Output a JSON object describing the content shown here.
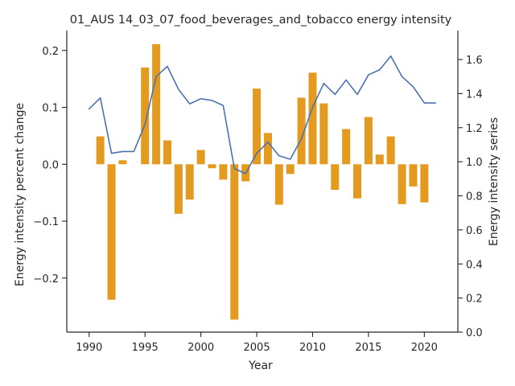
{
  "chart_data": {
    "type": "bar+line",
    "title": "01_AUS 14_03_07_food_beverages_and_tobacco energy intensity",
    "xlabel": "Year",
    "ylabel_left": "Energy intensity percent change",
    "ylabel_right": "Energy intensity series",
    "xlim": [
      1988,
      2023
    ],
    "ylim_left": [
      -0.295,
      0.235
    ],
    "ylim_right": [
      0.0,
      1.77
    ],
    "xticks": [
      1990,
      1995,
      2000,
      2005,
      2010,
      2015,
      2020
    ],
    "yticks_left": [
      -0.2,
      -0.1,
      0.0,
      0.1,
      0.2
    ],
    "yticks_left_labels": [
      "−0.2",
      "−0.1",
      "0.0",
      "0.1",
      "0.2"
    ],
    "yticks_right": [
      0.0,
      0.2,
      0.4,
      0.6,
      0.8,
      1.0,
      1.2,
      1.4,
      1.6
    ],
    "yticks_right_labels": [
      "0.0",
      "0.2",
      "0.4",
      "0.6",
      "0.8",
      "1.0",
      "1.2",
      "1.4",
      "1.6"
    ],
    "grid": false,
    "bars": {
      "color": "#e39a1f",
      "x": [
        1991,
        1992,
        1993,
        1995,
        1996,
        1997,
        1998,
        1999,
        2000,
        2001,
        2002,
        2003,
        2004,
        2005,
        2006,
        2007,
        2008,
        2009,
        2010,
        2011,
        2012,
        2013,
        2014,
        2015,
        2016,
        2017,
        2018,
        2019,
        2020
      ],
      "values": [
        0.049,
        -0.238,
        0.007,
        0.17,
        0.211,
        0.042,
        -0.087,
        -0.062,
        0.025,
        -0.007,
        -0.027,
        -0.273,
        -0.03,
        0.133,
        0.055,
        -0.071,
        -0.017,
        0.117,
        0.161,
        0.107,
        -0.045,
        0.062,
        -0.06,
        0.083,
        0.017,
        0.049,
        -0.07,
        -0.039,
        -0.067
      ]
    },
    "line": {
      "color": "#4c72b0",
      "x": [
        1990,
        1991,
        1992,
        1993,
        1994,
        1995,
        1996,
        1997,
        1998,
        1999,
        2000,
        2001,
        2002,
        2003,
        2004,
        2005,
        2006,
        2007,
        2008,
        2009,
        2010,
        2011,
        2012,
        2013,
        2014,
        2015,
        2016,
        2017,
        2018,
        2019,
        2020,
        2021
      ],
      "values": [
        1.31,
        1.375,
        1.05,
        1.06,
        1.06,
        1.22,
        1.5,
        1.56,
        1.425,
        1.34,
        1.37,
        1.36,
        1.33,
        0.96,
        0.93,
        1.05,
        1.115,
        1.035,
        1.015,
        1.135,
        1.32,
        1.46,
        1.395,
        1.48,
        1.395,
        1.51,
        1.54,
        1.62,
        1.5,
        1.44,
        1.345,
        1.345
      ]
    }
  }
}
